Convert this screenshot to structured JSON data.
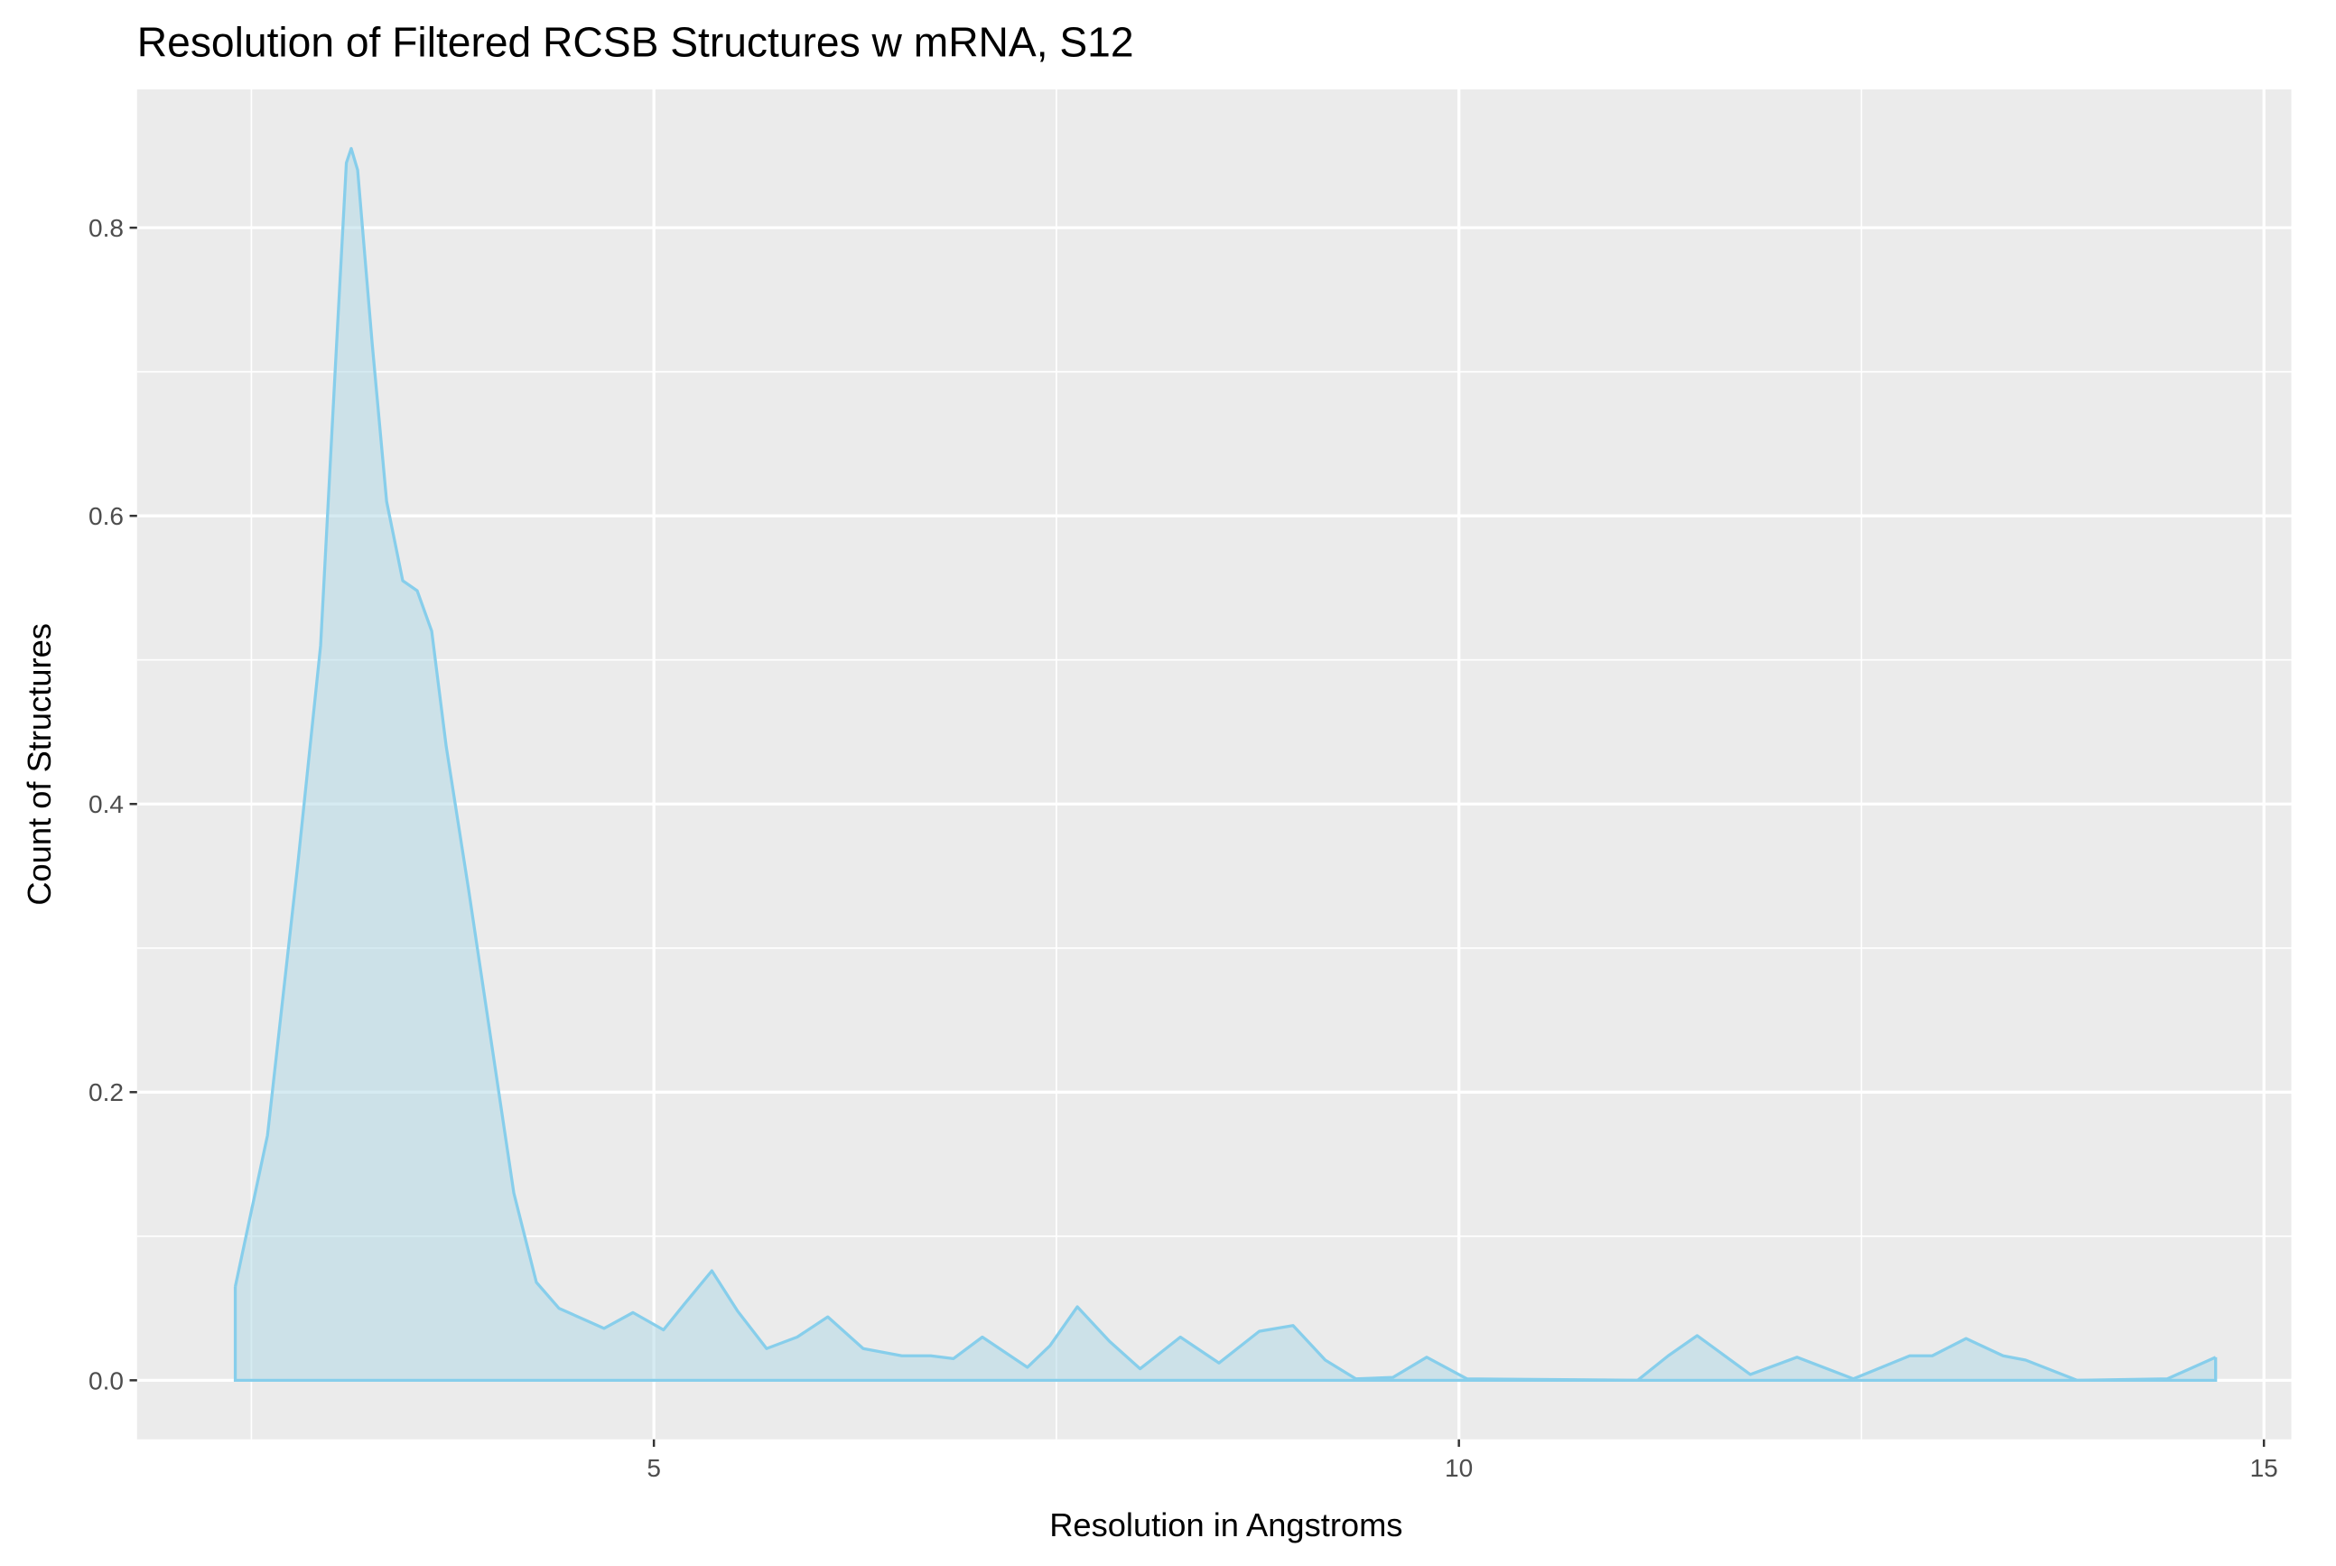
{
  "chart_data": {
    "type": "density",
    "title": "Resolution of Filtered RCSB Structures w mRNA, S12",
    "x_label": "Resolution in Angstroms",
    "y_label": "Count of Structures",
    "x": [
      2.4,
      2.6,
      2.79,
      2.93,
      3.02,
      3.09,
      3.12,
      3.16,
      3.25,
      3.34,
      3.44,
      3.53,
      3.62,
      3.71,
      3.85,
      3.99,
      4.13,
      4.27,
      4.41,
      4.55,
      4.69,
      4.87,
      5.06,
      5.19,
      5.36,
      5.52,
      5.7,
      5.89,
      6.08,
      6.3,
      6.54,
      6.72,
      6.86,
      7.04,
      7.32,
      7.46,
      7.63,
      7.83,
      8.02,
      8.27,
      8.51,
      8.76,
      8.97,
      9.17,
      9.36,
      9.59,
      9.8,
      10.05,
      11.11,
      11.3,
      11.48,
      11.81,
      12.1,
      12.45,
      12.8,
      12.94,
      13.15,
      13.38,
      13.52,
      13.84,
      14.4,
      14.7
    ],
    "values": [
      0.065,
      0.17,
      0.36,
      0.51,
      0.7,
      0.845,
      0.855,
      0.84,
      0.72,
      0.61,
      0.555,
      0.548,
      0.52,
      0.44,
      0.34,
      0.235,
      0.13,
      0.068,
      0.05,
      0.043,
      0.036,
      0.047,
      0.035,
      0.053,
      0.076,
      0.048,
      0.022,
      0.03,
      0.044,
      0.022,
      0.017,
      0.017,
      0.015,
      0.03,
      0.009,
      0.024,
      0.051,
      0.027,
      0.008,
      0.03,
      0.012,
      0.034,
      0.038,
      0.014,
      0.001,
      0.002,
      0.016,
      0.001,
      0,
      0.017,
      0.031,
      0.004,
      0.016,
      0.001,
      0.017,
      0.017,
      0.029,
      0.017,
      0.014,
      0,
      0.001,
      0.016
    ],
    "line_color": "#87ceeb",
    "fill_color": "#add8e6",
    "xlim": [
      1.79,
      15.17
    ],
    "ylim": [
      -0.041,
      0.896
    ],
    "xticks": [
      5,
      10,
      15
    ],
    "yticks": [
      {
        "value": 0,
        "label": "0.0"
      },
      0.2,
      0.4,
      0.6,
      0.8
    ],
    "minor_xticks": [
      2.5,
      7.5,
      12.5
    ],
    "minor_yticks": [
      0.1,
      0.3,
      0.5,
      0.7
    ],
    "grid": true
  }
}
